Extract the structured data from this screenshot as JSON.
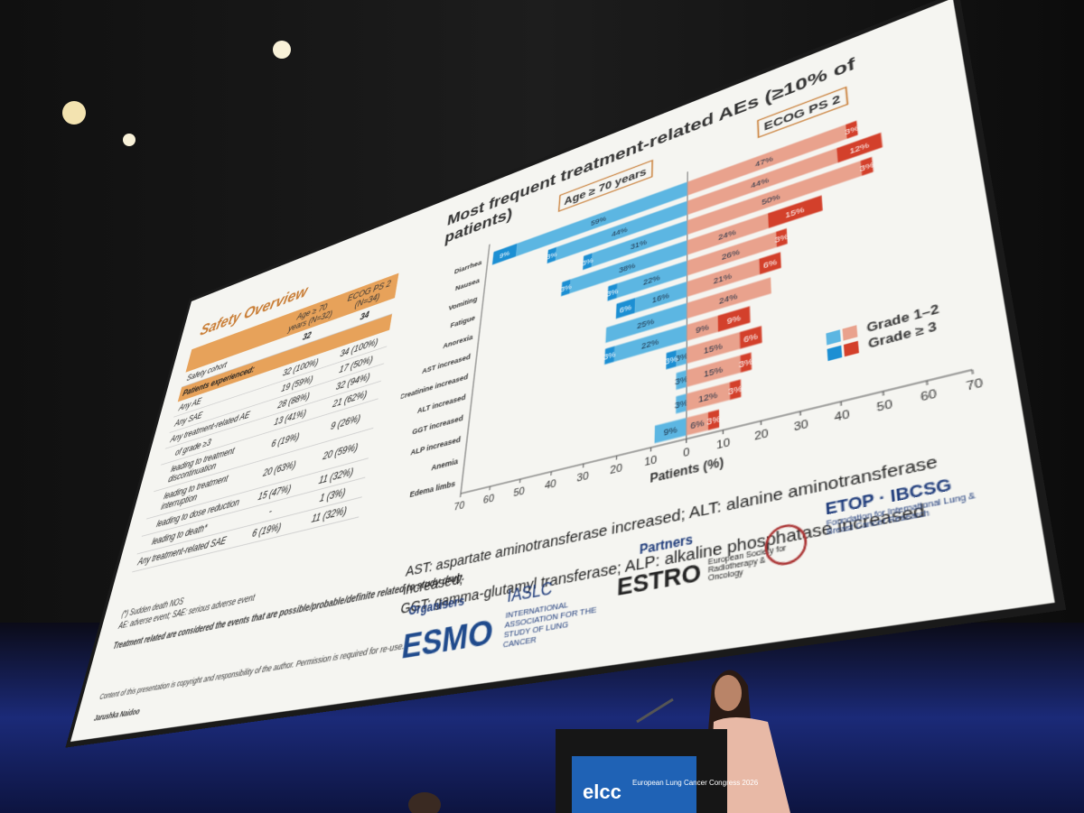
{
  "slide": {
    "table_title": "Safety Overview",
    "columns": [
      "Age ≥ 70 years (N=32)",
      "ECOG PS 2 (N=34)"
    ],
    "cohort_row": [
      "Safety cohort",
      "32",
      "34"
    ],
    "section": "Patients experienced:",
    "rows": [
      [
        "Any AE",
        "32 (100%)",
        "34 (100%)"
      ],
      [
        "Any SAE",
        "19 (59%)",
        "17 (50%)"
      ],
      [
        "Any treatment-related AE",
        "28 (88%)",
        "32 (94%)"
      ],
      [
        "of grade ≥3",
        "13 (41%)",
        "21 (62%)"
      ],
      [
        "leading to treatment discontinuation",
        "6 (19%)",
        "9 (26%)"
      ],
      [
        "leading to treatment interruption",
        "20 (63%)",
        "20 (59%)"
      ],
      [
        "leading to dose reduction",
        "15 (47%)",
        "11 (32%)"
      ],
      [
        "leading to death*",
        "-",
        "1 (3%)"
      ],
      [
        "Any treatment-related SAE",
        "6 (19%)",
        "11 (32%)"
      ]
    ],
    "footnotes": [
      "(*) Sudden death NOS",
      "AE: adverse event; SAE: serious adverse event",
      "Treatment related are considered the events that are possible/probable/definite related to study drug."
    ],
    "copyright": "Content of this presentation is copyright and responsibility of the author. Permission is required for re-use.",
    "author": "Jarushka Naidoo",
    "abbreviations": [
      "AST: aspartate aminotransferase increased; ALT: alanine aminotransferase increased;",
      "GGT: gamma-glutamyl transferase; ALP: alkaline phosphatase increased"
    ],
    "organisers_label": "Organisers",
    "organisers": [
      "ESMO",
      "IASLC",
      "INTERNATIONAL ASSOCIATION FOR THE STUDY OF LUNG CANCER"
    ],
    "partners_label": "Partners",
    "partners": [
      "ESTRO",
      "European Society for Radiotherapy & Oncology",
      "ETOP · IBCSG",
      "Foundation for International Lung & Breast Cancer Research"
    ]
  },
  "venue": {
    "podium_logo": "elcc",
    "podium_text": "European Lung Cancer Congress 2026"
  },
  "chart_data": {
    "type": "butterfly-bar",
    "title": "Most frequent treatment-related AEs (≥10% of patients)",
    "x_label": "Patients (%)",
    "categories": [
      "Diarrhea",
      "Nausea",
      "Vomiting",
      "Fatigue",
      "Anorexia",
      "AST increased",
      "Creatinine increased",
      "ALT increased",
      "GGT increased",
      "ALP increased",
      "Anemia",
      "Edema limbs"
    ],
    "groups": [
      {
        "name": "Age ≥ 70 years",
        "series": [
          {
            "color": "#5cb6e2",
            "values": [
              59,
              44,
              31,
              38,
              22,
              16,
              25,
              22,
              3,
              3,
              3,
              9
            ],
            "value_labels": [
              "59%",
              "44%",
              "31%",
              "38%",
              "22%",
              "16%",
              "25%",
              "22%",
              "3%",
              "3%",
              "3%",
              "9%"
            ]
          },
          {
            "color": "#1c8fd3",
            "values": [
              9,
              3,
              3,
              3,
              3,
              6,
              null,
              3,
              3,
              null,
              null,
              null
            ],
            "value_labels": [
              "9%",
              "3%",
              "3%",
              "3%",
              "3%",
              "6%",
              null,
              "3%",
              "3%",
              null,
              null,
              null
            ]
          }
        ]
      },
      {
        "name": "ECOG PS 2",
        "series": [
          {
            "color": "#e9a28d",
            "values": [
              47,
              44,
              50,
              24,
              26,
              21,
              24,
              9,
              15,
              15,
              12,
              6
            ],
            "value_labels": [
              "47%",
              "44%",
              "50%",
              "24%",
              "26%",
              "21%",
              "24%",
              "9%",
              "15%",
              "15%",
              "12%",
              "6%"
            ]
          },
          {
            "color": "#d3402b",
            "values": [
              3,
              12,
              3,
              15,
              3,
              6,
              null,
              9,
              6,
              3,
              3,
              3
            ],
            "value_labels": [
              "3%",
              "12%",
              "3%",
              "15%",
              "3%",
              "6%",
              null,
              "9%",
              "6%",
              "3%",
              "3%",
              "3%"
            ]
          }
        ]
      }
    ],
    "legend": {
      "entries": [
        "Grade 1–2",
        "Grade ≥ 3"
      ],
      "position": "lower right"
    },
    "xlim": [
      -70,
      70
    ],
    "xticks": [
      {
        "value": -70,
        "label": "70"
      },
      {
        "value": -60,
        "label": "60"
      },
      {
        "value": -50,
        "label": "50"
      },
      {
        "value": -40,
        "label": "40"
      },
      {
        "value": -30,
        "label": "30"
      },
      {
        "value": -20,
        "label": "20"
      },
      {
        "value": -10,
        "label": "10"
      },
      0,
      10,
      20,
      30,
      40,
      50,
      60,
      70
    ]
  }
}
